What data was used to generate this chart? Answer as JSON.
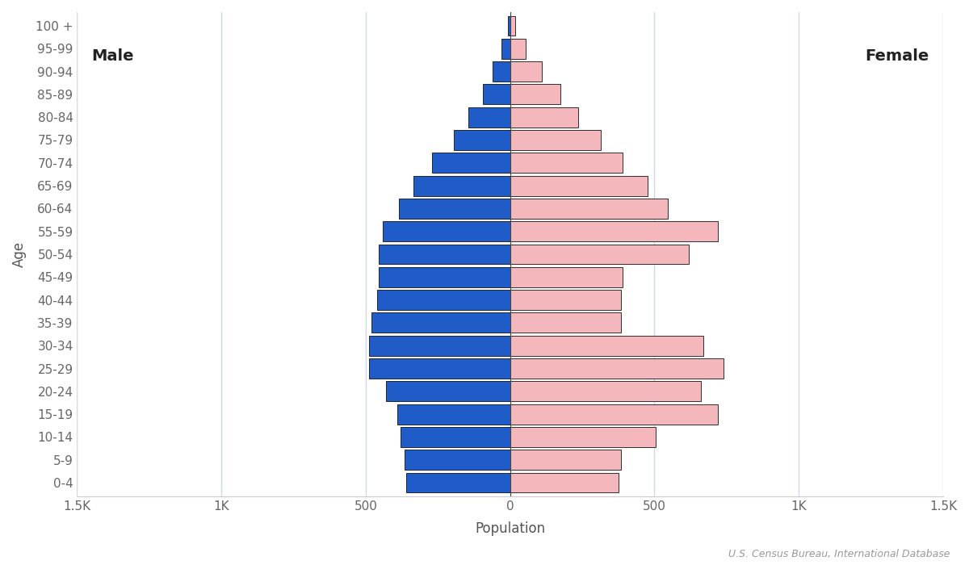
{
  "age_groups": [
    "0-4",
    "5-9",
    "10-14",
    "15-19",
    "20-24",
    "25-29",
    "30-34",
    "35-39",
    "40-44",
    "45-49",
    "50-54",
    "55-59",
    "60-64",
    "65-69",
    "70-74",
    "75-79",
    "80-84",
    "85-89",
    "90-94",
    "95-99",
    "100 +"
  ],
  "male": [
    360,
    365,
    380,
    390,
    430,
    490,
    490,
    480,
    460,
    455,
    455,
    440,
    385,
    335,
    270,
    195,
    145,
    95,
    60,
    30,
    8
  ],
  "female": [
    375,
    385,
    505,
    720,
    660,
    740,
    670,
    385,
    385,
    390,
    620,
    720,
    545,
    475,
    390,
    315,
    235,
    175,
    110,
    55,
    18
  ],
  "male_color": "#1f5cc8",
  "female_color": "#f4b8bc",
  "male_edge_color": "#111111",
  "female_edge_color": "#111111",
  "xlabel": "Population",
  "ylabel": "Age",
  "xlim": [
    -1500,
    1500
  ],
  "xticks": [
    -1500,
    -1000,
    -500,
    0,
    500,
    1000,
    1500
  ],
  "xtick_labels": [
    "1.5K",
    "1K",
    "500",
    "0",
    "500",
    "1K",
    "1.5K"
  ],
  "male_label": "Male",
  "female_label": "Female",
  "source_text": "U.S. Census Bureau, International Database",
  "background_color": "#ffffff",
  "grid_color": "#d0d8e8",
  "label_fontsize": 12,
  "tick_fontsize": 11,
  "bar_height": 0.88
}
